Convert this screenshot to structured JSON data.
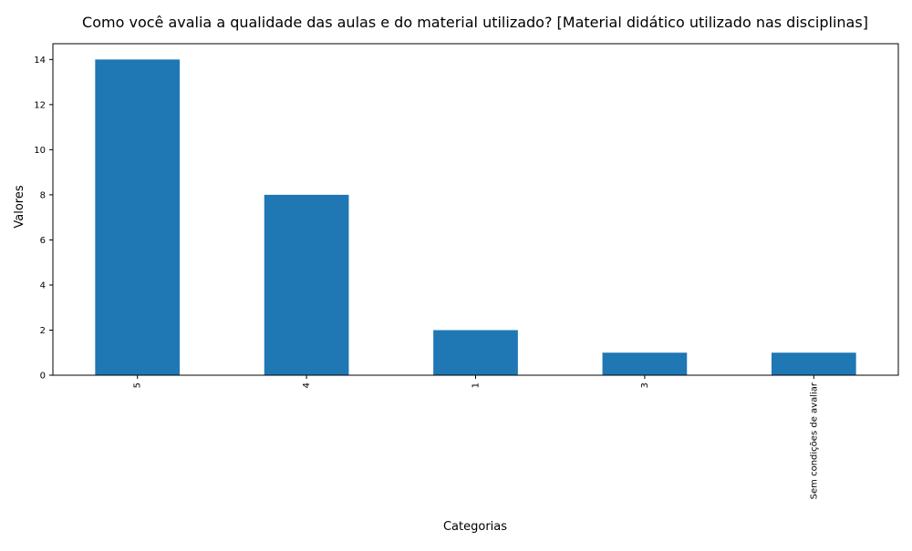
{
  "chart_data": {
    "type": "bar",
    "title": "Como você avalia a qualidade das aulas e do material utilizado?  [Material didático utilizado nas disciplinas]",
    "xlabel": "Categorias",
    "ylabel": "Valores",
    "categories": [
      "5",
      "4",
      "1",
      "3",
      "Sem condições de avaliar"
    ],
    "values": [
      14,
      8,
      2,
      1,
      1
    ],
    "ylim": [
      0,
      14.7
    ],
    "yticks": [
      0,
      2,
      4,
      6,
      8,
      10,
      12,
      14
    ],
    "grid": false,
    "legend": "none",
    "bar_color": "#1f77b4"
  }
}
